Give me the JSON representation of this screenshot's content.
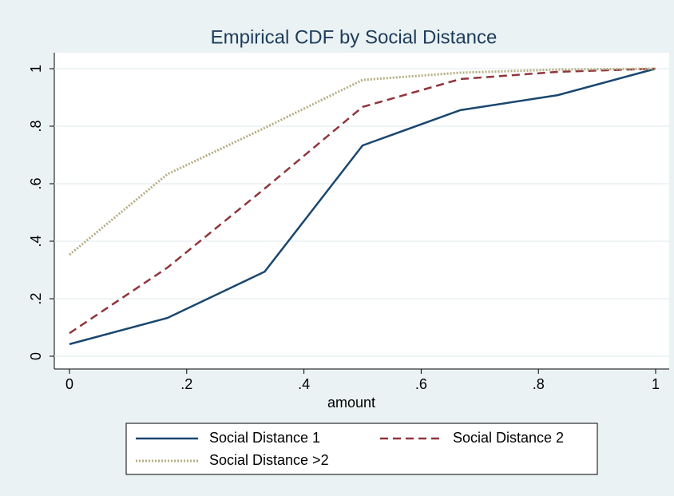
{
  "chart_data": {
    "type": "line",
    "title": "Empirical CDF by Social Distance",
    "x_label": "amount",
    "x": [
      0,
      0.167,
      0.333,
      0.5,
      0.667,
      0.833,
      1
    ],
    "series": [
      {
        "name": "Social Distance 1",
        "color": "#1a476f",
        "dash": "solid",
        "values": [
          0.042,
          0.133,
          0.294,
          0.733,
          0.856,
          0.908,
          1
        ]
      },
      {
        "name": "Social Distance 2",
        "color": "#90353b",
        "dash": "dashed",
        "values": [
          0.08,
          0.308,
          0.583,
          0.867,
          0.964,
          0.989,
          1
        ]
      },
      {
        "name": "Social Distance >2",
        "color": "#b5ad82",
        "dash": "dotted",
        "values": [
          0.353,
          0.633,
          0.794,
          0.961,
          0.986,
          0.997,
          1
        ]
      }
    ],
    "xlim": [
      0,
      1
    ],
    "ylim": [
      0,
      1
    ],
    "xticks": [
      0,
      {
        "value": 0.2,
        "label": ".2"
      },
      {
        "value": 0.4,
        "label": ".4"
      },
      {
        "value": 0.6,
        "label": ".6"
      },
      {
        "value": 0.8,
        "label": ".8"
      },
      1
    ],
    "yticks": [
      0,
      {
        "value": 0.2,
        "label": ".2"
      },
      {
        "value": 0.4,
        "label": ".4"
      },
      {
        "value": 0.6,
        "label": ".6"
      },
      {
        "value": 0.8,
        "label": ".8"
      },
      1
    ],
    "grid": true,
    "legend": "bottom"
  }
}
